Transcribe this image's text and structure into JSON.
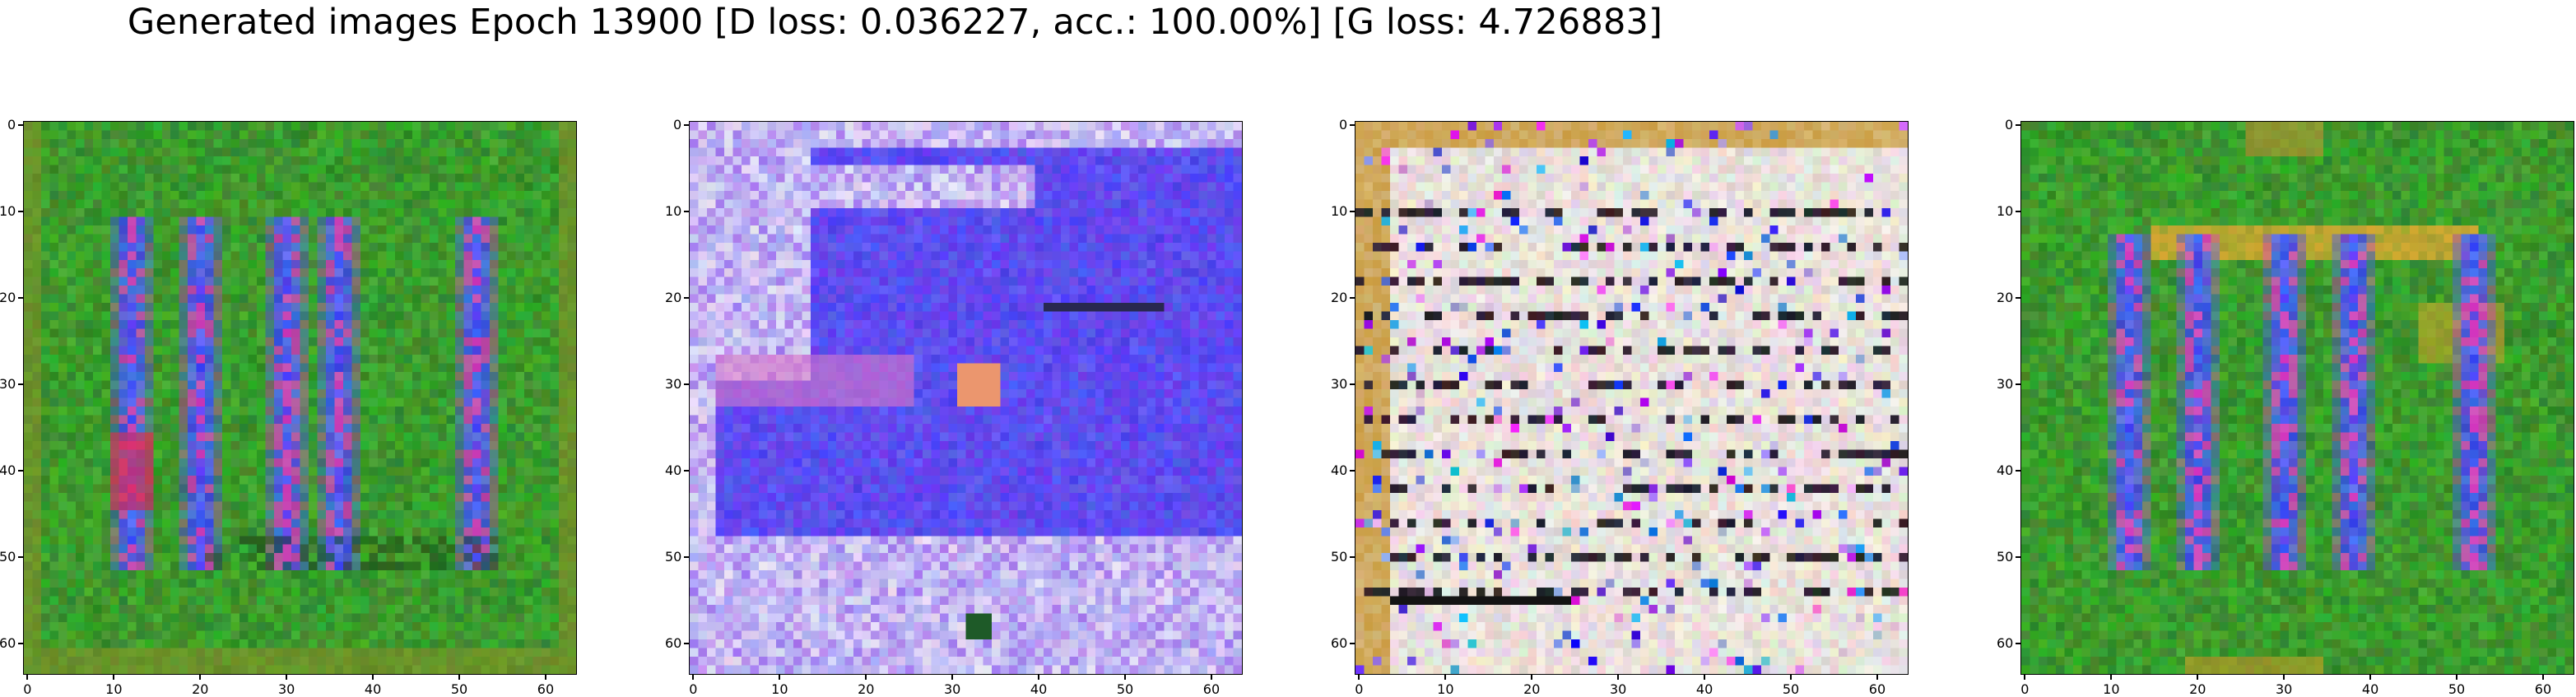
{
  "figure": {
    "title": "Generated images Epoch 13900 [D loss: 0.036227, acc.: 100.00%] [G loss: 4.726883]",
    "image_size": 64,
    "x_ticks": [
      "0",
      "10",
      "20",
      "30",
      "40",
      "50",
      "60"
    ],
    "y_ticks": [
      "0",
      "10",
      "20",
      "30",
      "40",
      "50",
      "60"
    ],
    "panels": [
      {
        "name": "generated-image-1",
        "description": "green background with blue and magenta vertical strokes",
        "palette": [
          "#1f8f1f",
          "#2b5cf0",
          "#d0309a"
        ]
      },
      {
        "name": "generated-image-2",
        "description": "blue and pale lavender noisy texture",
        "palette": [
          "#4040e6",
          "#e6d9f2",
          "#e05a8a"
        ]
      },
      {
        "name": "generated-image-3",
        "description": "pale noisy texture with dark horizontal streaks and golden border",
        "palette": [
          "#e8e2dc",
          "#222222",
          "#c89a2a"
        ]
      },
      {
        "name": "generated-image-4",
        "description": "green background with blue, magenta and orange strokes",
        "palette": [
          "#1f8f1f",
          "#2b5cf0",
          "#e3a020"
        ]
      }
    ]
  }
}
